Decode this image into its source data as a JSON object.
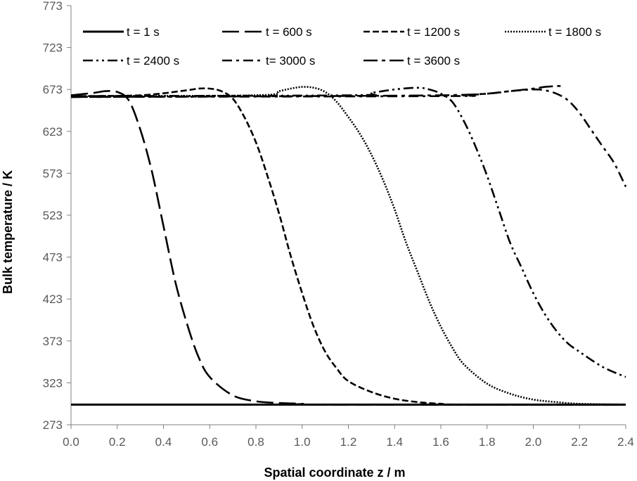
{
  "chart_data": {
    "type": "line",
    "title": "",
    "xlabel": "Spatial coordinate z / m",
    "ylabel": "Bulk temperature / K",
    "xlim": [
      0.0,
      2.4
    ],
    "ylim": [
      273,
      773
    ],
    "x_ticks": [
      "0.0",
      "0.2",
      "0.4",
      "0.6",
      "0.8",
      "1.0",
      "1.2",
      "1.4",
      "1.6",
      "1.8",
      "2.0",
      "2.2",
      "2.4"
    ],
    "y_ticks": [
      "273",
      "323",
      "373",
      "423",
      "473",
      "523",
      "573",
      "623",
      "673",
      "723",
      "773"
    ],
    "grid": false,
    "legend_position": "top",
    "series": [
      {
        "name": "t = 1 s",
        "style": "solid",
        "x": [
          0.0,
          2.4
        ],
        "y": [
          297,
          297
        ]
      },
      {
        "name": "t = 600 s",
        "style": "long-dash",
        "x": [
          0.0,
          0.1,
          0.15,
          0.2,
          0.25,
          0.3,
          0.35,
          0.4,
          0.45,
          0.5,
          0.55,
          0.6,
          0.7,
          0.8,
          0.9,
          1.0,
          1.1,
          2.4
        ],
        "y": [
          666,
          669,
          671,
          670,
          660,
          625,
          575,
          510,
          445,
          395,
          355,
          330,
          308,
          301,
          299,
          298,
          297,
          297
        ]
      },
      {
        "name": "t = 1200 s",
        "style": "dash",
        "x": [
          0.0,
          0.3,
          0.5,
          0.55,
          0.6,
          0.65,
          0.7,
          0.75,
          0.8,
          0.85,
          0.9,
          0.95,
          1.0,
          1.05,
          1.1,
          1.15,
          1.2,
          1.3,
          1.4,
          1.5,
          1.6,
          1.7,
          2.4
        ],
        "y": [
          665,
          666,
          672,
          674,
          674,
          671,
          662,
          640,
          610,
          570,
          525,
          475,
          430,
          390,
          360,
          340,
          325,
          312,
          304,
          300,
          298,
          297,
          297
        ]
      },
      {
        "name": "t = 1800 s",
        "style": "dotted",
        "x": [
          0.0,
          0.8,
          0.9,
          0.95,
          1.0,
          1.05,
          1.1,
          1.15,
          1.2,
          1.25,
          1.3,
          1.35,
          1.4,
          1.45,
          1.5,
          1.55,
          1.6,
          1.65,
          1.7,
          1.8,
          1.9,
          2.0,
          2.1,
          2.2,
          2.4
        ],
        "y": [
          665,
          666,
          671,
          674,
          676,
          675,
          670,
          658,
          640,
          620,
          595,
          565,
          530,
          490,
          455,
          420,
          390,
          365,
          345,
          322,
          310,
          303,
          300,
          298,
          297
        ]
      },
      {
        "name": "t = 2400 s",
        "style": "dash-dot-dot",
        "x": [
          0.0,
          1.2,
          1.3,
          1.4,
          1.5,
          1.55,
          1.6,
          1.65,
          1.7,
          1.75,
          1.8,
          1.85,
          1.9,
          1.95,
          2.0,
          2.05,
          2.1,
          2.15,
          2.2,
          2.3,
          2.4
        ],
        "y": [
          665,
          666,
          669,
          673,
          675,
          673,
          668,
          658,
          635,
          605,
          570,
          530,
          490,
          460,
          430,
          405,
          385,
          370,
          360,
          342,
          330
        ]
      },
      {
        "name": "t= 3000 s",
        "style": "dash-dot",
        "x": [
          0.0,
          1.6,
          1.7,
          1.8,
          1.9,
          2.0,
          2.05,
          2.1,
          2.15,
          2.2,
          2.25,
          2.3,
          2.35,
          2.4
        ],
        "y": [
          664,
          665,
          666,
          668,
          671,
          673,
          672,
          668,
          660,
          645,
          625,
          605,
          585,
          557
        ]
      },
      {
        "name": "t = 3600 s",
        "style": "long-dash-dot",
        "x": [
          0.0,
          1.0,
          1.6,
          1.8,
          1.9,
          2.0,
          2.05,
          2.1,
          2.12
        ],
        "y": [
          664,
          665,
          666,
          668,
          671,
          674,
          676,
          677,
          677
        ]
      }
    ]
  }
}
